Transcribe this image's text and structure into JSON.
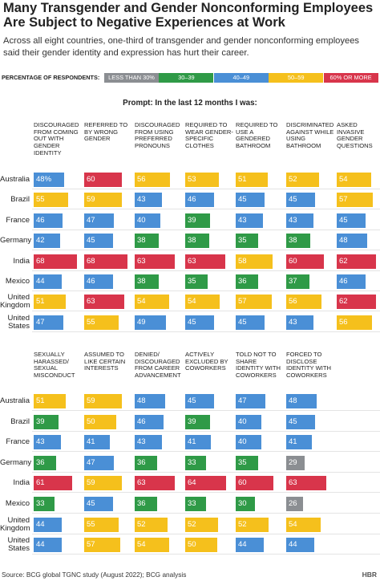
{
  "title": "Many Transgender and Gender Nonconforming Employees Are Subject to Negative Experiences at Work",
  "subtitle": "Across all eight countries, one-third of transgender and gender nonconforming employees said their gender identity and expression has hurt their career.",
  "legend": {
    "title": "PERCENTAGE OF RESPONDENTS:",
    "items": [
      {
        "label": "LESS THAN 30%",
        "color": "#8b8e92"
      },
      {
        "label": "30–39",
        "min": 30,
        "color": "#2f9a47"
      },
      {
        "label": "40–49",
        "min": 40,
        "color": "#4a8fd6"
      },
      {
        "label": "50–59",
        "min": 50,
        "color": "#f5c01c"
      },
      {
        "label": "60% OR MORE",
        "min": 60,
        "color": "#d8354b"
      }
    ]
  },
  "prompt": "Prompt: In the last 12 months I was:",
  "source": "Source: BCG global TGNC study (August 2022); BCG analysis",
  "logo": "HBR",
  "chart_data": [
    {
      "type": "bar",
      "columns": [
        "Discouraged from coming out with gender identity",
        "Referred to by wrong gender",
        "Discouraged from using preferred pronouns",
        "Required to wear gender-specific clothes",
        "Required to use a gendered bathroom",
        "Discriminated against while using bathroom",
        "Asked invasive gender questions"
      ],
      "rows": [
        "Australia",
        "Brazil",
        "France",
        "Germany",
        "India",
        "Mexico",
        "United Kingdom",
        "United States"
      ],
      "values": [
        [
          48,
          60,
          56,
          53,
          51,
          52,
          54
        ],
        [
          55,
          59,
          43,
          46,
          45,
          45,
          57
        ],
        [
          46,
          47,
          40,
          39,
          43,
          43,
          45
        ],
        [
          42,
          45,
          38,
          38,
          35,
          38,
          48
        ],
        [
          68,
          68,
          63,
          63,
          58,
          60,
          62
        ],
        [
          44,
          46,
          38,
          35,
          36,
          37,
          46
        ],
        [
          51,
          63,
          54,
          54,
          57,
          56,
          62
        ],
        [
          47,
          55,
          49,
          45,
          45,
          43,
          56
        ]
      ],
      "value_labels": [
        [
          "48%",
          "60",
          "56",
          "53",
          "51",
          "52",
          "54"
        ],
        [
          "55",
          "59",
          "43",
          "46",
          "45",
          "45",
          "57"
        ],
        [
          "46",
          "47",
          "40",
          "39",
          "43",
          "43",
          "45"
        ],
        [
          "42",
          "45",
          "38",
          "38",
          "35",
          "38",
          "48"
        ],
        [
          "68",
          "68",
          "63",
          "63",
          "58",
          "60",
          "62"
        ],
        [
          "44",
          "46",
          "38",
          "35",
          "36",
          "37",
          "46"
        ],
        [
          "51",
          "63",
          "54",
          "54",
          "57",
          "56",
          "62"
        ],
        [
          "47",
          "55",
          "49",
          "45",
          "45",
          "43",
          "56"
        ]
      ]
    },
    {
      "type": "bar",
      "columns": [
        "Sexually harassed/ sexual misconduct",
        "Assumed to like certain interests",
        "Denied/ discouraged from career advancement",
        "Actively excluded by coworkers",
        "Told not to share identity with coworkers",
        "Forced to disclose identity with coworkers"
      ],
      "rows": [
        "Australia",
        "Brazil",
        "France",
        "Germany",
        "India",
        "Mexico",
        "United Kingdom",
        "United States"
      ],
      "values": [
        [
          51,
          59,
          48,
          45,
          47,
          48
        ],
        [
          39,
          50,
          46,
          39,
          40,
          45
        ],
        [
          43,
          41,
          43,
          41,
          40,
          41
        ],
        [
          36,
          47,
          36,
          33,
          35,
          29
        ],
        [
          61,
          59,
          63,
          64,
          60,
          63
        ],
        [
          33,
          45,
          36,
          33,
          30,
          26
        ],
        [
          44,
          55,
          52,
          52,
          52,
          54
        ],
        [
          44,
          57,
          54,
          50,
          44,
          44
        ]
      ]
    }
  ]
}
